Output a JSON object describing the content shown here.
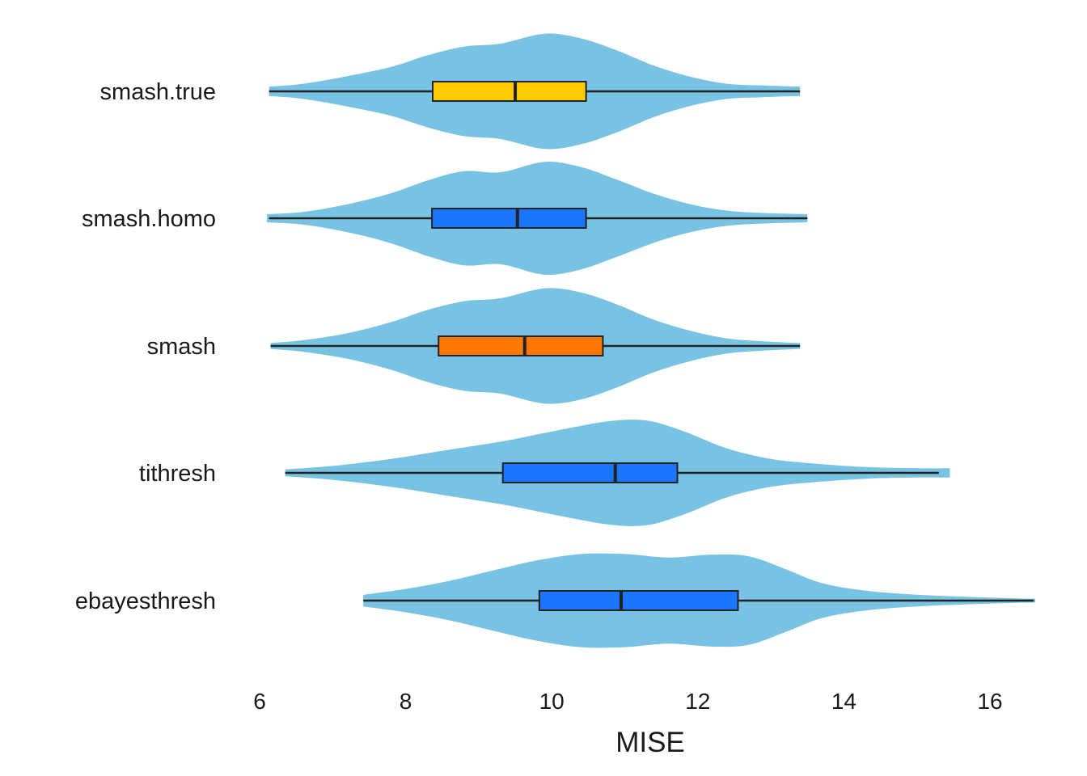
{
  "chart_data": {
    "type": "violin",
    "orientation": "horizontal",
    "xlabel": "MISE",
    "ylabel": "",
    "xlim": [
      5.97,
      16.7
    ],
    "xticks": [
      6,
      8,
      10,
      12,
      14,
      16
    ],
    "xtick_labels": [
      "6",
      "8",
      "10",
      "12",
      "14",
      "16"
    ],
    "grid": false,
    "violin_color": "#78c2e4",
    "series": [
      {
        "name": "smash.true",
        "box_color": "#ffcc00",
        "min": 6.13,
        "q1": 8.37,
        "median": 9.5,
        "q3": 10.47,
        "max": 13.4,
        "violin_range": [
          6.13,
          13.4
        ],
        "density": [
          [
            6.13,
            0.08
          ],
          [
            6.6,
            0.13
          ],
          [
            7.2,
            0.26
          ],
          [
            7.8,
            0.42
          ],
          [
            8.3,
            0.62
          ],
          [
            8.8,
            0.77
          ],
          [
            9.3,
            0.82
          ],
          [
            9.9,
            0.99
          ],
          [
            10.4,
            0.91
          ],
          [
            10.9,
            0.7
          ],
          [
            11.4,
            0.44
          ],
          [
            11.9,
            0.25
          ],
          [
            12.4,
            0.13
          ],
          [
            12.9,
            0.1
          ],
          [
            13.4,
            0.08
          ]
        ]
      },
      {
        "name": "smash.homo",
        "box_color": "#1a75ff",
        "min": 6.13,
        "q1": 8.36,
        "median": 9.53,
        "q3": 10.47,
        "max": 13.5,
        "violin_range": [
          6.1,
          13.5
        ],
        "density": [
          [
            6.1,
            0.07
          ],
          [
            6.6,
            0.11
          ],
          [
            7.2,
            0.24
          ],
          [
            7.8,
            0.43
          ],
          [
            8.3,
            0.65
          ],
          [
            8.8,
            0.81
          ],
          [
            9.3,
            0.79
          ],
          [
            9.9,
            0.97
          ],
          [
            10.4,
            0.88
          ],
          [
            10.9,
            0.66
          ],
          [
            11.4,
            0.42
          ],
          [
            11.9,
            0.24
          ],
          [
            12.4,
            0.13
          ],
          [
            12.9,
            0.09
          ],
          [
            13.5,
            0.07
          ]
        ]
      },
      {
        "name": "smash",
        "box_color": "#ff7700",
        "min": 6.15,
        "q1": 8.45,
        "median": 9.63,
        "q3": 10.7,
        "max": 13.4,
        "violin_range": [
          6.15,
          13.4
        ],
        "density": [
          [
            6.15,
            0.05
          ],
          [
            6.6,
            0.1
          ],
          [
            7.2,
            0.22
          ],
          [
            7.8,
            0.41
          ],
          [
            8.3,
            0.62
          ],
          [
            8.8,
            0.77
          ],
          [
            9.3,
            0.82
          ],
          [
            9.9,
            0.99
          ],
          [
            10.4,
            0.92
          ],
          [
            10.9,
            0.71
          ],
          [
            11.4,
            0.45
          ],
          [
            11.9,
            0.26
          ],
          [
            12.4,
            0.13
          ],
          [
            12.9,
            0.08
          ],
          [
            13.4,
            0.05
          ]
        ]
      },
      {
        "name": "tithresh",
        "box_color": "#1a75ff",
        "min": 6.35,
        "q1": 9.33,
        "median": 10.87,
        "q3": 11.72,
        "max": 15.3,
        "violin_range": [
          6.35,
          15.45
        ],
        "density": [
          [
            6.35,
            0.06
          ],
          [
            7.0,
            0.12
          ],
          [
            7.8,
            0.24
          ],
          [
            8.6,
            0.4
          ],
          [
            9.4,
            0.56
          ],
          [
            10.2,
            0.76
          ],
          [
            10.8,
            0.89
          ],
          [
            11.3,
            0.9
          ],
          [
            11.8,
            0.72
          ],
          [
            12.4,
            0.42
          ],
          [
            13.0,
            0.24
          ],
          [
            13.6,
            0.16
          ],
          [
            14.3,
            0.1
          ],
          [
            15.0,
            0.08
          ],
          [
            15.45,
            0.08
          ]
        ]
      },
      {
        "name": "ebayesthresh",
        "box_color": "#1a75ff",
        "min": 7.42,
        "q1": 9.83,
        "median": 10.95,
        "q3": 12.55,
        "max": 16.6,
        "violin_range": [
          7.42,
          16.62
        ],
        "density": [
          [
            7.42,
            0.1
          ],
          [
            8.0,
            0.2
          ],
          [
            8.6,
            0.34
          ],
          [
            9.2,
            0.52
          ],
          [
            9.8,
            0.69
          ],
          [
            10.4,
            0.8
          ],
          [
            11.0,
            0.8
          ],
          [
            11.6,
            0.74
          ],
          [
            12.2,
            0.79
          ],
          [
            12.7,
            0.76
          ],
          [
            13.2,
            0.54
          ],
          [
            13.7,
            0.3
          ],
          [
            14.3,
            0.17
          ],
          [
            15.0,
            0.1
          ],
          [
            15.8,
            0.06
          ],
          [
            16.62,
            0.03
          ]
        ]
      }
    ]
  }
}
